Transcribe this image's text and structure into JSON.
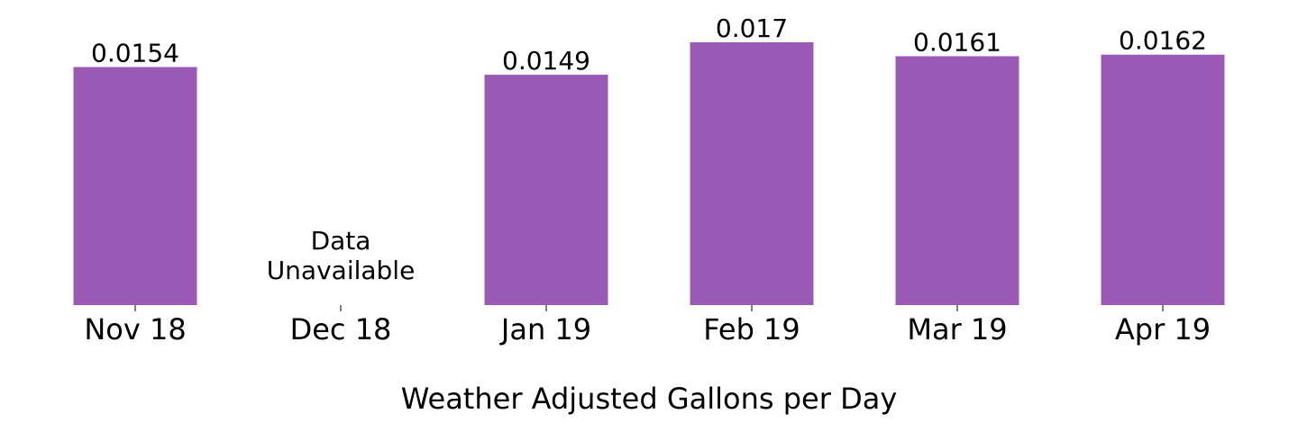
{
  "chart_data": {
    "type": "bar",
    "categories": [
      "Nov 18",
      "Dec 18",
      "Jan 19",
      "Feb 19",
      "Mar 19",
      "Apr 19"
    ],
    "values": [
      0.0154,
      null,
      0.0149,
      0.017,
      0.0161,
      0.0162
    ],
    "value_labels": [
      "0.0154",
      "",
      "0.0149",
      "0.017",
      "0.0161",
      "0.0162"
    ],
    "missing_label": [
      "Data",
      "Unavailable"
    ],
    "xlabel": "Weather Adjusted Gallons per Day",
    "ylabel": "",
    "ylim": [
      0,
      0.017
    ],
    "bar_color": "#9b59b6",
    "grid": false,
    "legend": "none"
  }
}
